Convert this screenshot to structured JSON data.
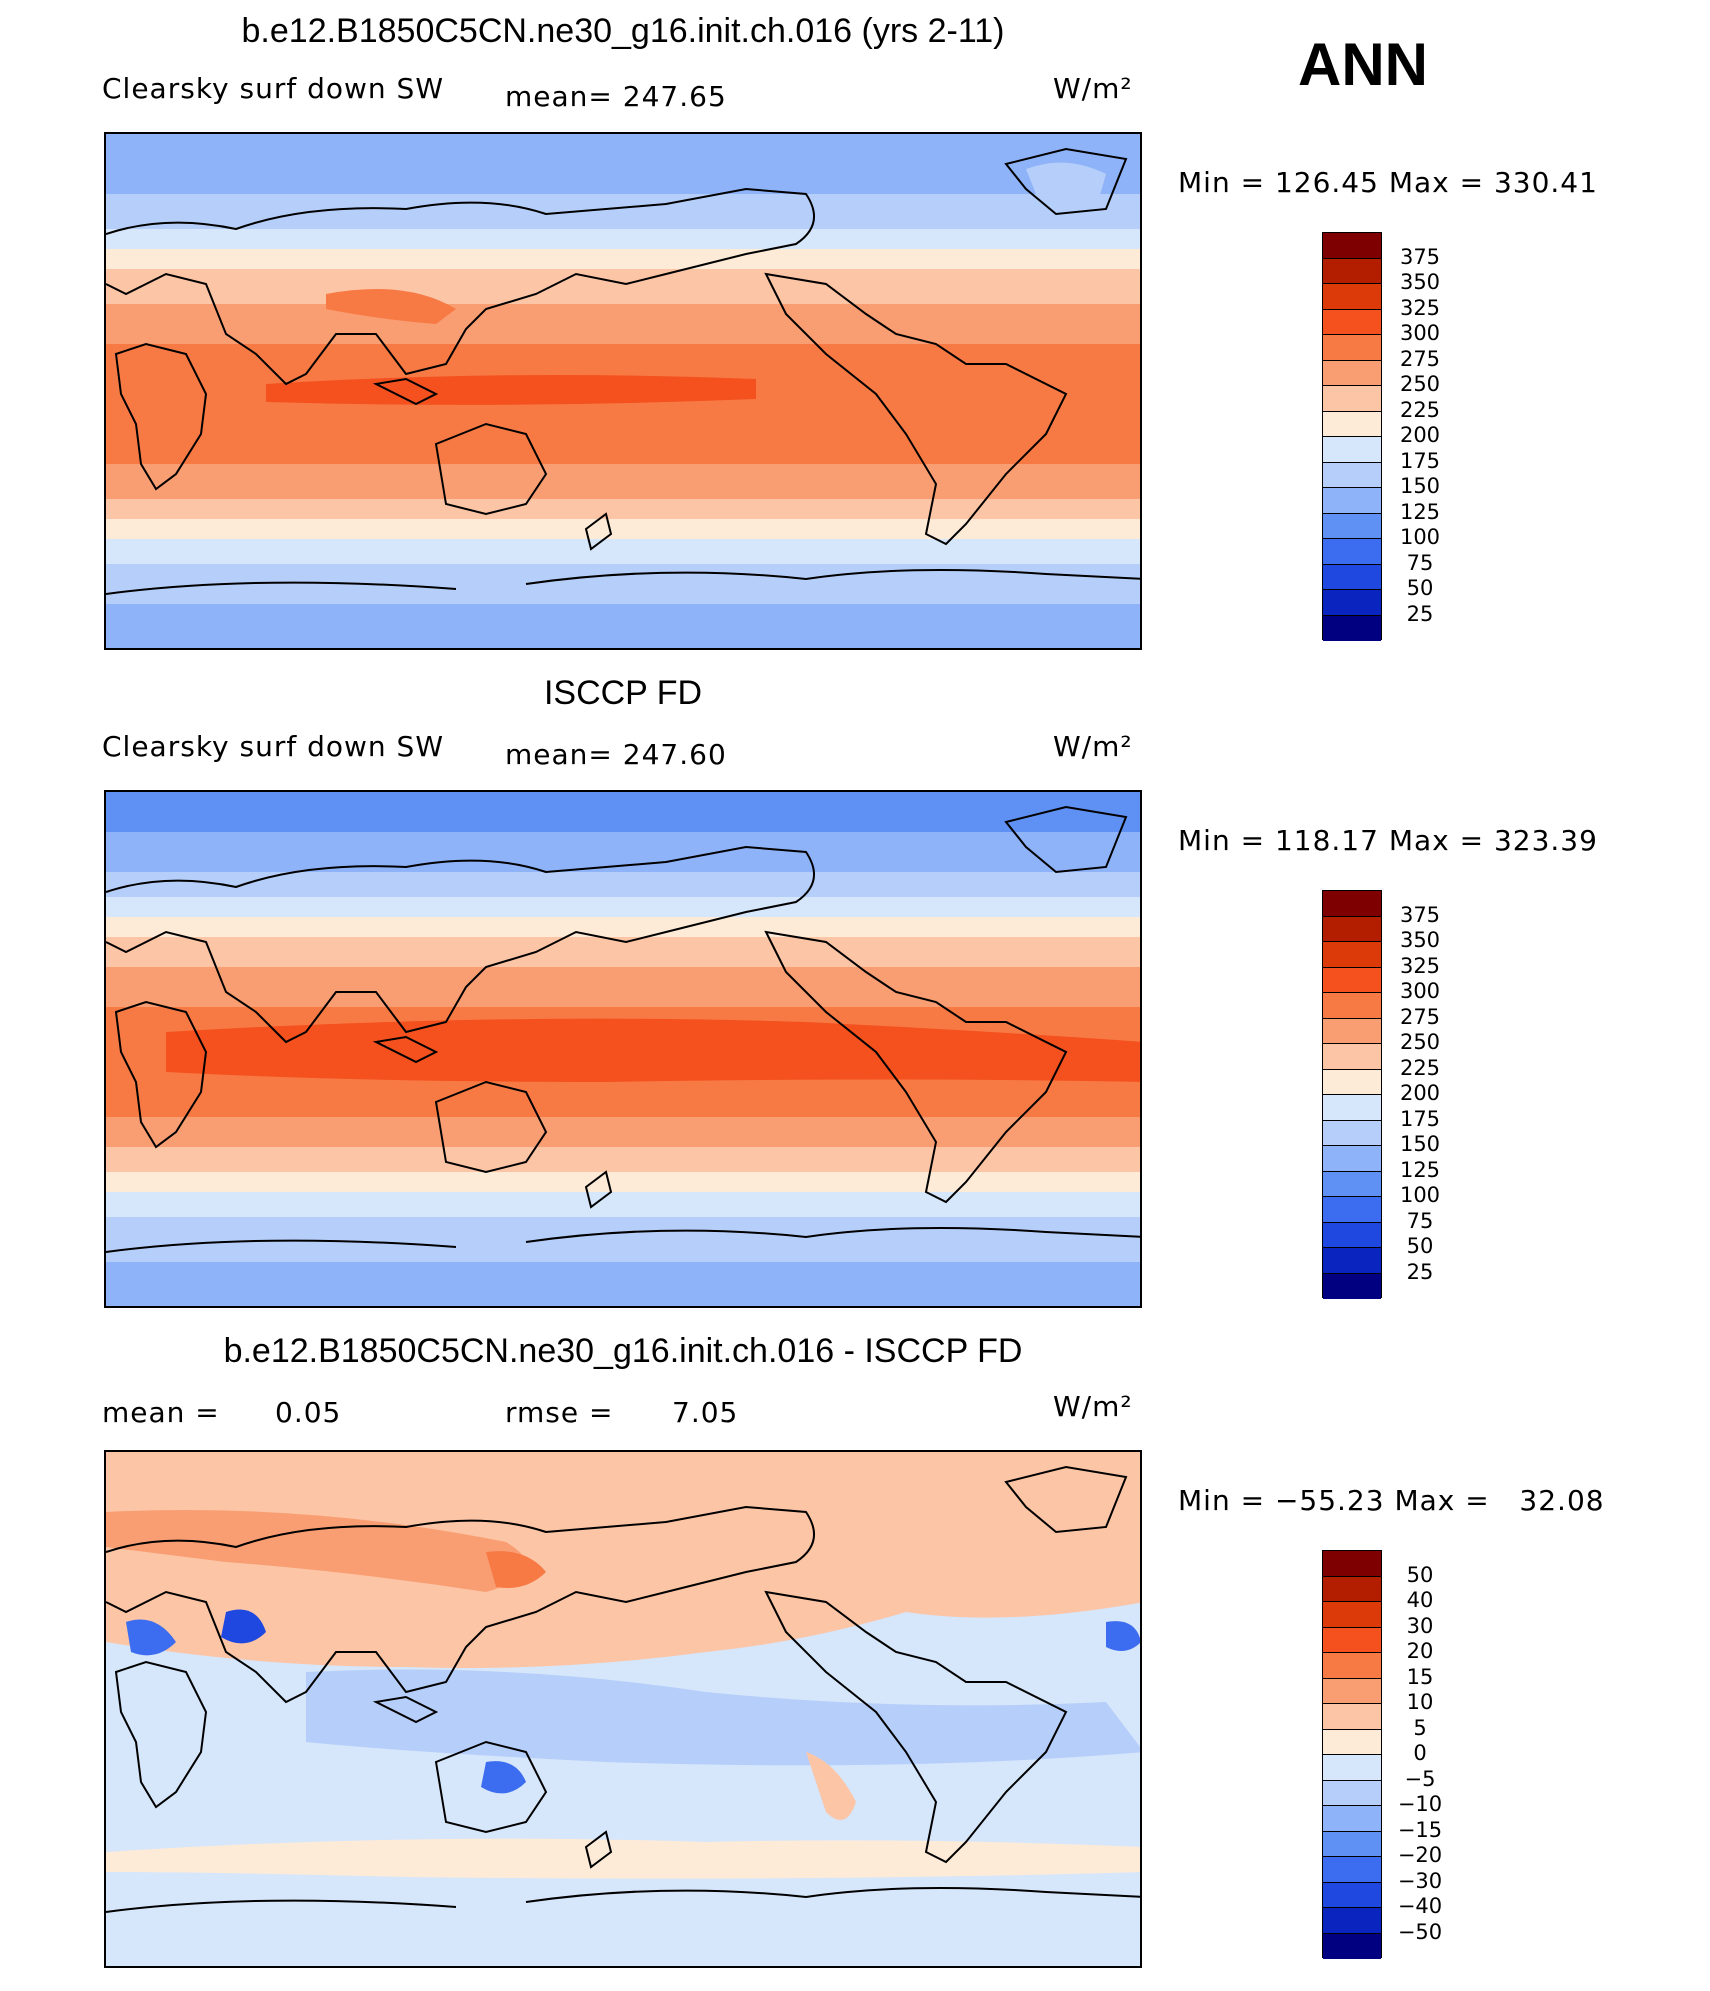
{
  "season": "ANN",
  "units": "W/m²",
  "panels": [
    {
      "title": "b.e12.B1850C5CN.ne30_g16.init.ch.016 (yrs 2-11)",
      "left_label": "Clearsky surf down SW",
      "stat1_label": "mean=",
      "stat1_value": "247.65",
      "stat2_label": "",
      "stat2_value": "",
      "minmax": "Min = 126.45 Max = 330.41",
      "levels": [
        "375",
        "350",
        "325",
        "300",
        "275",
        "250",
        "225",
        "200",
        "175",
        "150",
        "125",
        "100",
        "75",
        "50",
        "25"
      ],
      "colors": [
        "#7f0000",
        "#b31e00",
        "#dc3a08",
        "#f4511e",
        "#f77a45",
        "#f99e72",
        "#fcc5a6",
        "#fdebd8",
        "#d6e6fb",
        "#b6cffa",
        "#8fb3f8",
        "#5f90f4",
        "#3c6cf0",
        "#1e48e0",
        "#0a24c0",
        "#000080"
      ]
    },
    {
      "title": "ISCCP FD",
      "left_label": "Clearsky surf down SW",
      "stat1_label": "mean=",
      "stat1_value": "247.60",
      "stat2_label": "",
      "stat2_value": "",
      "minmax": "Min = 118.17 Max = 323.39",
      "levels": [
        "375",
        "350",
        "325",
        "300",
        "275",
        "250",
        "225",
        "200",
        "175",
        "150",
        "125",
        "100",
        "75",
        "50",
        "25"
      ],
      "colors": [
        "#7f0000",
        "#b31e00",
        "#dc3a08",
        "#f4511e",
        "#f77a45",
        "#f99e72",
        "#fcc5a6",
        "#fdebd8",
        "#d6e6fb",
        "#b6cffa",
        "#8fb3f8",
        "#5f90f4",
        "#3c6cf0",
        "#1e48e0",
        "#0a24c0",
        "#000080"
      ]
    },
    {
      "title": "b.e12.B1850C5CN.ne30_g16.init.ch.016 - ISCCP FD",
      "left_label": "mean =",
      "stat1_label": "",
      "stat1_value": "0.05",
      "stat2_label": "rmse =",
      "stat2_value": "7.05",
      "minmax": "Min = −55.23 Max =   32.08",
      "levels": [
        "50",
        "40",
        "30",
        "20",
        "15",
        "10",
        "5",
        "0",
        "−5",
        "−10",
        "−15",
        "−20",
        "−30",
        "−40",
        "−50"
      ],
      "colors": [
        "#7f0000",
        "#b31e00",
        "#dc3a08",
        "#f4511e",
        "#f77a45",
        "#f99e72",
        "#fcc5a6",
        "#fdebd8",
        "#d6e6fb",
        "#b6cffa",
        "#8fb3f8",
        "#5f90f4",
        "#3c6cf0",
        "#1e48e0",
        "#0a24c0",
        "#000080"
      ]
    }
  ],
  "map_colors": {
    "ocean_polar": "#8fb3f8",
    "ocean_subpolar": "#b6cffa",
    "ocean_cold": "#d6e6fb",
    "mid_light": "#fdebd8",
    "mid_warm": "#fcc5a6",
    "warm": "#f99e72",
    "hot": "#f77a45",
    "hottest": "#f4511e",
    "diff_pos": "#fcc5a6",
    "diff_neg": "#d6e6fb"
  }
}
